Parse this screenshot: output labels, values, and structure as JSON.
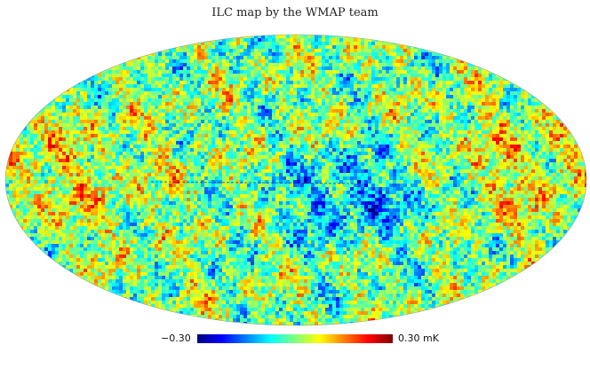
{
  "title": "ILC map by the WMAP team",
  "map": {
    "projection": "mollweide",
    "colormap": [
      "#00007f",
      "#0000ff",
      "#007fff",
      "#00ffff",
      "#7fff7f",
      "#ffff00",
      "#ff7f00",
      "#ff0000",
      "#7f0000"
    ],
    "background": "#ffffff"
  },
  "colorbar": {
    "min_label": "−0.30",
    "max_label": "0.30 mK"
  }
}
